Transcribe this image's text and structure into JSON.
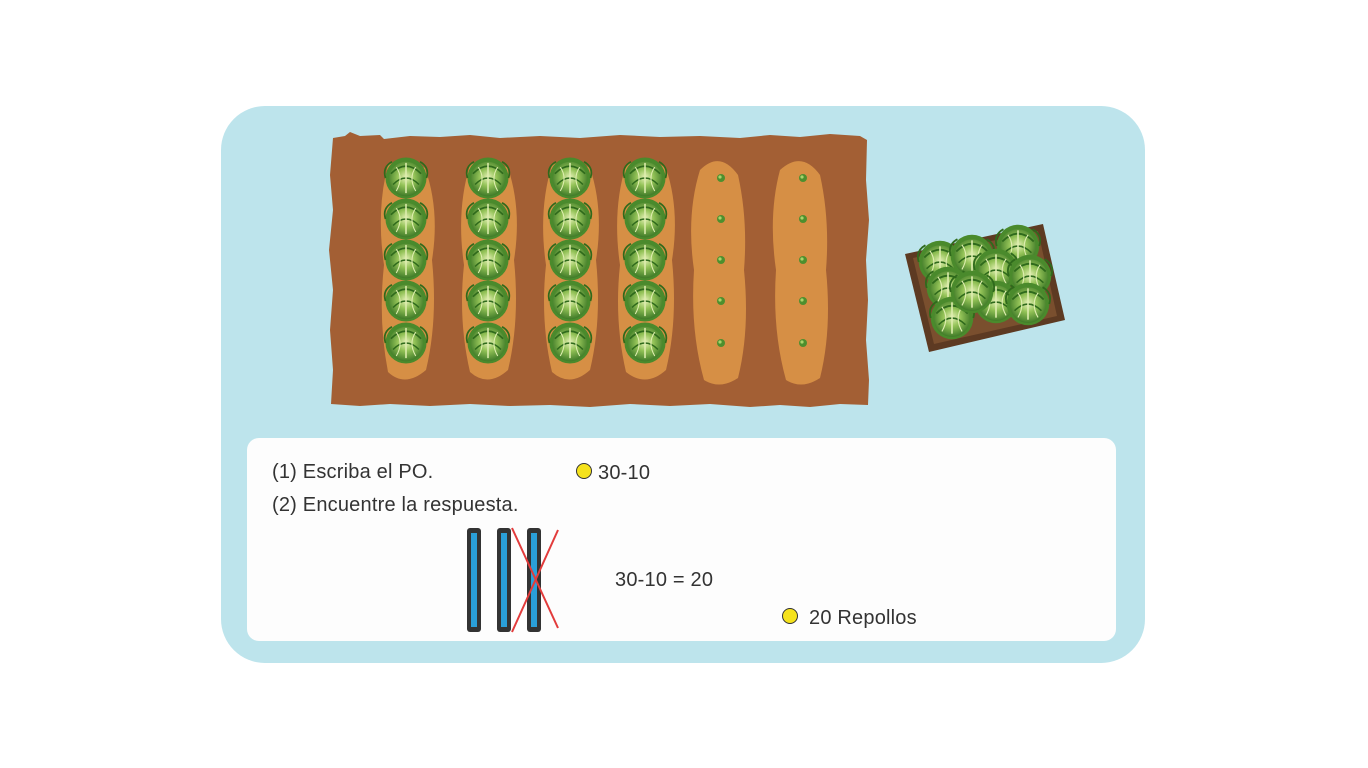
{
  "instructions": {
    "step1": "(1) Escriba el PO.",
    "step2": "(2) Encuentre la respuesta."
  },
  "answers": {
    "expression": "30-10",
    "equation": "30-10 = 20",
    "result": "20 Repollos"
  },
  "field": {
    "cabbage_columns": 4,
    "seedling_columns": 2,
    "rows": 5,
    "crate_cabbages": 10
  },
  "bars": {
    "total": 3,
    "crossed_out": 1
  },
  "colors": {
    "card_background": "#bde4ec",
    "soil_dark": "#a35f34",
    "soil_light": "#d68f45",
    "bar_fill": "#2a9fd8",
    "cross_line": "#e23b3b",
    "marker_dot": "#f5e21c"
  }
}
